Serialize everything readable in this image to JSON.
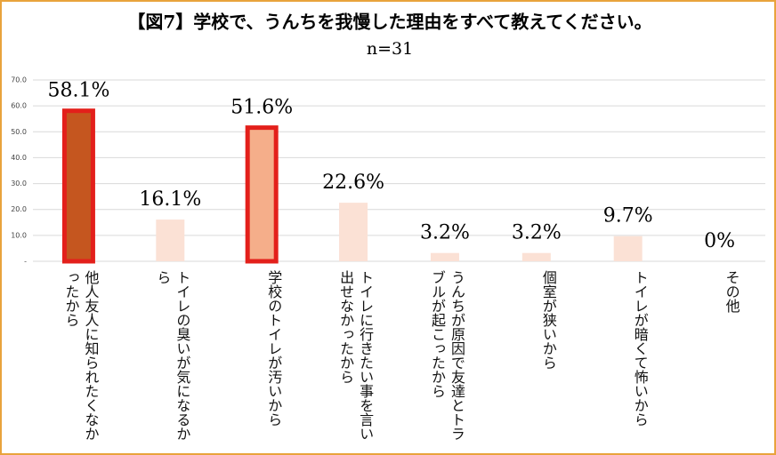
{
  "chart_data": {
    "type": "bar",
    "title": "【図7】学校で、うんちを我慢した理由をすべて教えてください。",
    "subtitle": "n=31",
    "categories": [
      "他人友人に知られたくなかったから",
      "トイレの臭いが気になるから",
      "学校のトイレが汚いから",
      "トイレに行きたい事を言い出せなかったから",
      "うんちが原因で友達とトラブルが起こったから",
      "個室が狭いから",
      "トイレが暗くて怖いから",
      "その他"
    ],
    "values": [
      58.1,
      16.1,
      51.6,
      22.6,
      3.2,
      3.2,
      9.7,
      0
    ],
    "value_labels": [
      "58.1%",
      "16.1%",
      "51.6%",
      "22.6%",
      "3.2%",
      "3.2%",
      "9.7%",
      "0%"
    ],
    "colors": [
      "#c5561f",
      "#fbe1d5",
      "#f5ae8a",
      "#fbe1d5",
      "#fbe1d5",
      "#fbe1d5",
      "#fbe1d5",
      "#fbe1d5"
    ],
    "edge_colors": [
      "#e3201b",
      null,
      "#e3201b",
      null,
      null,
      null,
      null,
      null
    ],
    "ylim": [
      0,
      70
    ],
    "yticks": [
      {
        "value": 0,
        "label": "-"
      },
      {
        "value": 10,
        "label": "10.0"
      },
      {
        "value": 20,
        "label": "20.0"
      },
      {
        "value": 30,
        "label": "30.0"
      },
      {
        "value": 40,
        "label": "40.0"
      },
      {
        "value": 50,
        "label": "50.0"
      },
      {
        "value": 60,
        "label": "60.0"
      },
      {
        "value": 70,
        "label": "70.0"
      }
    ],
    "grid": true
  }
}
